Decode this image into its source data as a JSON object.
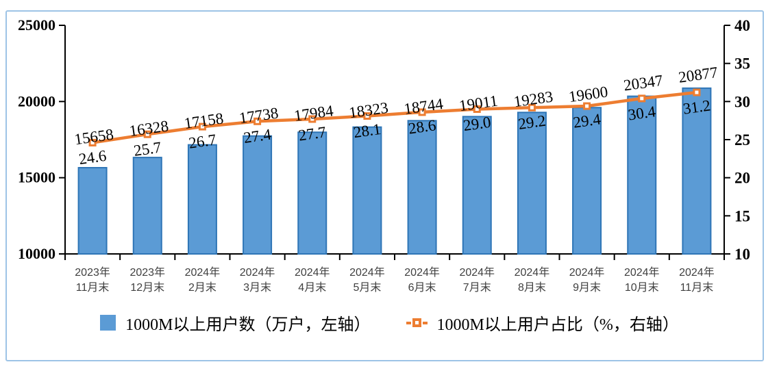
{
  "chart_data": {
    "type": "bar",
    "title": "",
    "categories": [
      [
        "2023年",
        "11月末"
      ],
      [
        "2023年",
        "12月末"
      ],
      [
        "2024年",
        "2月末"
      ],
      [
        "2024年",
        "3月末"
      ],
      [
        "2024年",
        "4月末"
      ],
      [
        "2024年",
        "5月末"
      ],
      [
        "2024年",
        "6月末"
      ],
      [
        "2024年",
        "7月末"
      ],
      [
        "2024年",
        "8月末"
      ],
      [
        "2024年",
        "9月末"
      ],
      [
        "2024年",
        "10月末"
      ],
      [
        "2024年",
        "11月末"
      ]
    ],
    "series": [
      {
        "name": "1000M以上用户数（万户，左轴）",
        "type": "bar",
        "axis": "left",
        "values": [
          15658,
          16328,
          17158,
          17738,
          17984,
          18323,
          18744,
          19011,
          19283,
          19600,
          20347,
          20877
        ],
        "color": "#5B9BD5",
        "border_color": "#2E75B6"
      },
      {
        "name": "1000M以上用户占比（%，右轴）",
        "type": "line",
        "axis": "right",
        "values": [
          24.6,
          25.7,
          26.7,
          27.4,
          27.7,
          28.1,
          28.6,
          29.0,
          29.2,
          29.4,
          30.4,
          31.2
        ],
        "color": "#ED7D31"
      }
    ],
    "left_axis": {
      "min": 10000,
      "max": 25000,
      "ticks": [
        10000,
        15000,
        20000,
        25000
      ]
    },
    "right_axis": {
      "min": 10,
      "max": 40,
      "ticks": [
        10,
        15,
        20,
        25,
        30,
        35,
        40
      ]
    },
    "grid": false,
    "legend_position": "bottom"
  },
  "colors": {
    "frame": "#9DC3E6",
    "axis": "#000000",
    "bar_fill": "#5B9BD5",
    "bar_border": "#2E75B6",
    "line": "#ED7D31",
    "data_label": "#000000",
    "category_text": "#3F3F3F"
  }
}
